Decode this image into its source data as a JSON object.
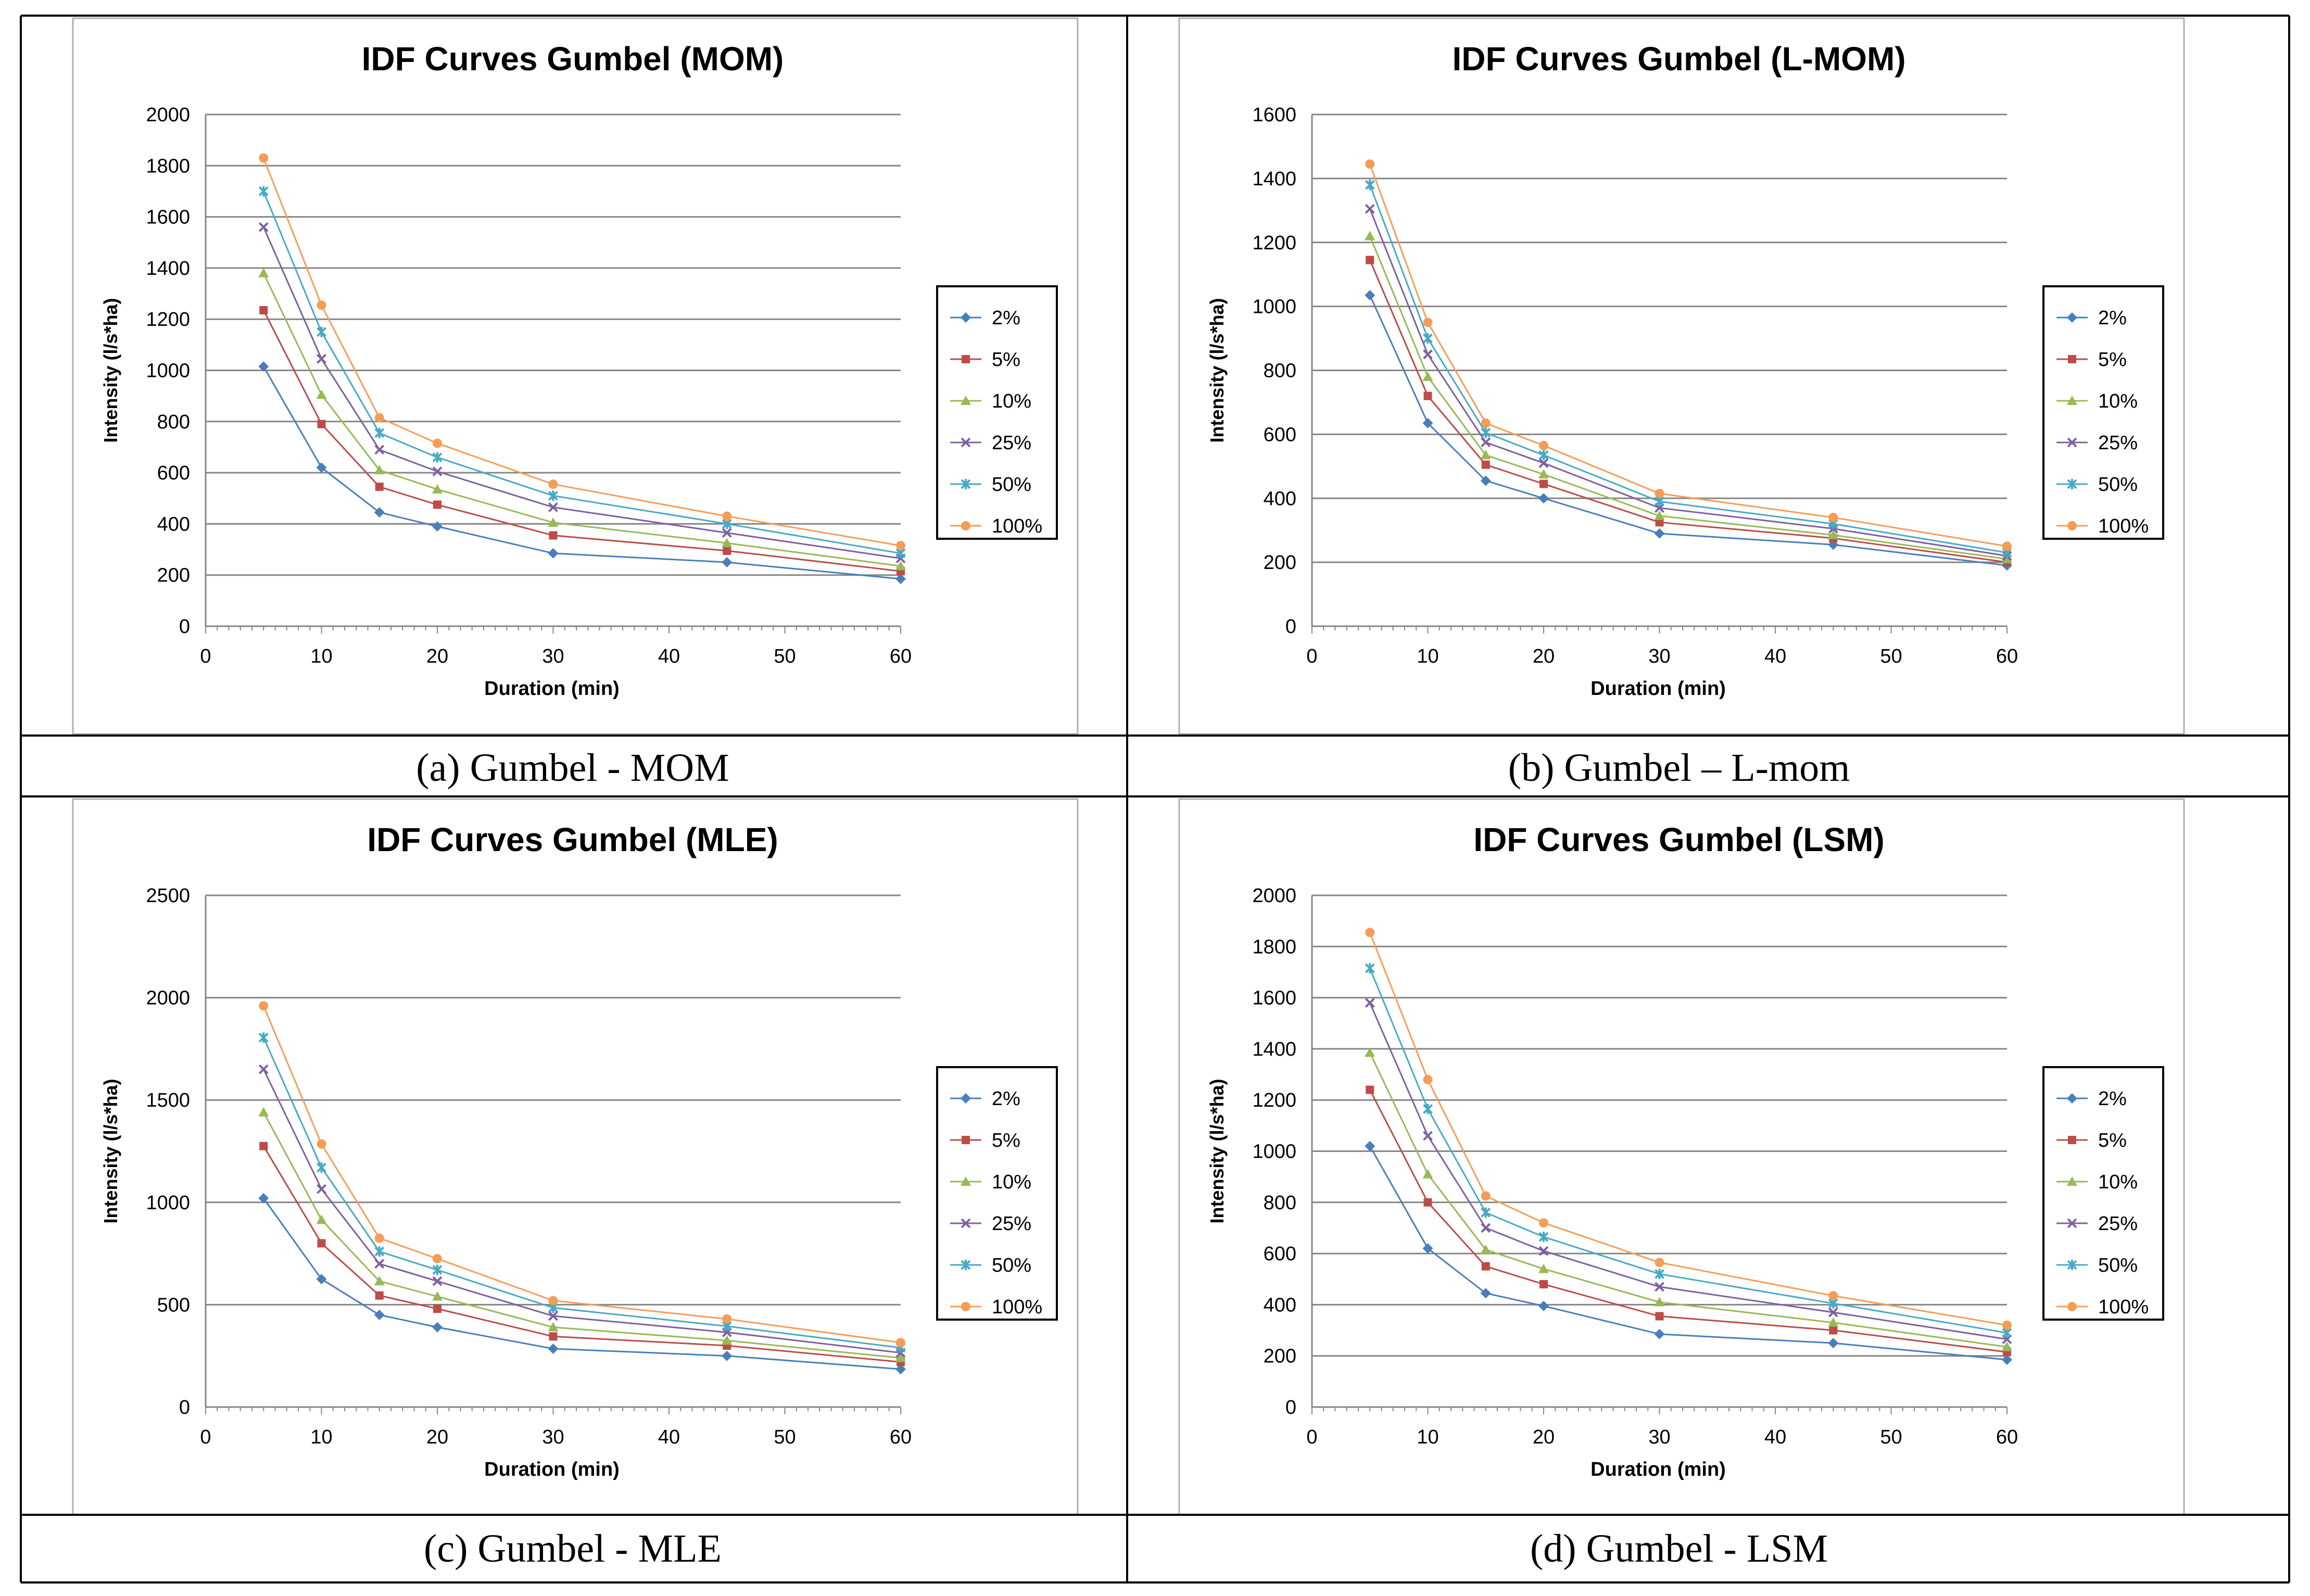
{
  "chart_data": [
    {
      "type": "line",
      "title": "IDF Curves Gumbel (MOM)",
      "caption": "(a) Gumbel - MOM",
      "xlabel": "Duration (min)",
      "ylabel": "Intensity (l/s*ha)",
      "xlim": [
        0,
        60
      ],
      "ylim": [
        0,
        2000
      ],
      "xticks": [
        0,
        10,
        20,
        30,
        40,
        50,
        60
      ],
      "yticks": [
        0,
        200,
        400,
        600,
        800,
        1000,
        1200,
        1400,
        1600,
        1800,
        2000
      ],
      "grid": "horizontal",
      "legend_position": "right",
      "x": [
        5,
        10,
        15,
        20,
        30,
        45,
        60
      ],
      "series": [
        {
          "name": "2%",
          "marker": "diamond",
          "color": "#4a7ebb",
          "values": [
            1015,
            620,
            445,
            390,
            285,
            250,
            185
          ]
        },
        {
          "name": "5%",
          "marker": "square",
          "color": "#be4b48",
          "values": [
            1235,
            790,
            545,
            475,
            355,
            295,
            215
          ]
        },
        {
          "name": "10%",
          "marker": "triangle",
          "color": "#98b954",
          "values": [
            1380,
            905,
            610,
            535,
            405,
            325,
            235
          ]
        },
        {
          "name": "25%",
          "marker": "x",
          "color": "#7d60a0",
          "values": [
            1560,
            1045,
            690,
            605,
            465,
            365,
            265
          ]
        },
        {
          "name": "50%",
          "marker": "star",
          "color": "#46aac5",
          "values": [
            1700,
            1150,
            755,
            660,
            510,
            400,
            285
          ]
        },
        {
          "name": "100%",
          "marker": "circle",
          "color": "#f59d56",
          "values": [
            1830,
            1255,
            815,
            715,
            555,
            430,
            315
          ]
        }
      ]
    },
    {
      "type": "line",
      "title": "IDF Curves Gumbel (L-MOM)",
      "caption": "(b) Gumbel – L-mom",
      "xlabel": "Duration (min)",
      "ylabel": "Intensity (l/s*ha)",
      "xlim": [
        0,
        60
      ],
      "ylim": [
        0,
        1600
      ],
      "xticks": [
        0,
        10,
        20,
        30,
        40,
        50,
        60
      ],
      "yticks": [
        0,
        200,
        400,
        600,
        800,
        1000,
        1200,
        1400,
        1600
      ],
      "grid": "horizontal",
      "legend_position": "right",
      "x": [
        5,
        10,
        15,
        20,
        30,
        45,
        60
      ],
      "series": [
        {
          "name": "2%",
          "marker": "diamond",
          "color": "#4a7ebb",
          "values": [
            1035,
            635,
            455,
            400,
            290,
            255,
            190
          ]
        },
        {
          "name": "5%",
          "marker": "square",
          "color": "#be4b48",
          "values": [
            1145,
            720,
            505,
            445,
            325,
            275,
            200
          ]
        },
        {
          "name": "10%",
          "marker": "triangle",
          "color": "#98b954",
          "values": [
            1220,
            780,
            535,
            475,
            345,
            285,
            210
          ]
        },
        {
          "name": "25%",
          "marker": "x",
          "color": "#7d60a0",
          "values": [
            1305,
            850,
            575,
            510,
            370,
            305,
            220
          ]
        },
        {
          "name": "50%",
          "marker": "star",
          "color": "#46aac5",
          "values": [
            1380,
            900,
            605,
            535,
            390,
            320,
            230
          ]
        },
        {
          "name": "100%",
          "marker": "circle",
          "color": "#f59d56",
          "values": [
            1445,
            950,
            635,
            565,
            415,
            340,
            250
          ]
        }
      ]
    },
    {
      "type": "line",
      "title": "IDF Curves Gumbel (MLE)",
      "caption": "(c) Gumbel - MLE",
      "xlabel": "Duration (min)",
      "ylabel": "Intensity (l/s*ha)",
      "xlim": [
        0,
        60
      ],
      "ylim": [
        0,
        2500
      ],
      "xticks": [
        0,
        10,
        20,
        30,
        40,
        50,
        60
      ],
      "yticks": [
        0,
        500,
        1000,
        1500,
        2000,
        2500
      ],
      "grid": "horizontal",
      "legend_position": "right",
      "x": [
        5,
        10,
        15,
        20,
        30,
        45,
        60
      ],
      "series": [
        {
          "name": "2%",
          "marker": "diamond",
          "color": "#4a7ebb",
          "values": [
            1020,
            625,
            450,
            390,
            285,
            250,
            185
          ]
        },
        {
          "name": "5%",
          "marker": "square",
          "color": "#be4b48",
          "values": [
            1275,
            800,
            545,
            480,
            345,
            300,
            220
          ]
        },
        {
          "name": "10%",
          "marker": "triangle",
          "color": "#98b954",
          "values": [
            1440,
            915,
            615,
            540,
            390,
            325,
            240
          ]
        },
        {
          "name": "25%",
          "marker": "x",
          "color": "#7d60a0",
          "values": [
            1650,
            1065,
            700,
            615,
            445,
            365,
            265
          ]
        },
        {
          "name": "50%",
          "marker": "star",
          "color": "#46aac5",
          "values": [
            1805,
            1170,
            760,
            670,
            485,
            395,
            290
          ]
        },
        {
          "name": "100%",
          "marker": "circle",
          "color": "#f59d56",
          "values": [
            1960,
            1285,
            825,
            725,
            520,
            430,
            315
          ]
        }
      ]
    },
    {
      "type": "line",
      "title": "IDF Curves Gumbel (LSM)",
      "caption": "(d) Gumbel - LSM",
      "xlabel": "Duration (min)",
      "ylabel": "Intensity (l/s*ha)",
      "xlim": [
        0,
        60
      ],
      "ylim": [
        0,
        2000
      ],
      "xticks": [
        0,
        10,
        20,
        30,
        40,
        50,
        60
      ],
      "yticks": [
        0,
        200,
        400,
        600,
        800,
        1000,
        1200,
        1400,
        1600,
        1800,
        2000
      ],
      "grid": "horizontal",
      "legend_position": "right",
      "x": [
        5,
        10,
        15,
        20,
        30,
        45,
        60
      ],
      "series": [
        {
          "name": "2%",
          "marker": "diamond",
          "color": "#4a7ebb",
          "values": [
            1020,
            620,
            445,
            395,
            285,
            250,
            185
          ]
        },
        {
          "name": "5%",
          "marker": "square",
          "color": "#be4b48",
          "values": [
            1240,
            800,
            550,
            480,
            355,
            300,
            215
          ]
        },
        {
          "name": "10%",
          "marker": "triangle",
          "color": "#98b954",
          "values": [
            1385,
            910,
            615,
            540,
            410,
            330,
            235
          ]
        },
        {
          "name": "25%",
          "marker": "x",
          "color": "#7d60a0",
          "values": [
            1580,
            1060,
            700,
            610,
            470,
            370,
            265
          ]
        },
        {
          "name": "50%",
          "marker": "star",
          "color": "#46aac5",
          "values": [
            1715,
            1165,
            760,
            665,
            520,
            405,
            290
          ]
        },
        {
          "name": "100%",
          "marker": "circle",
          "color": "#f59d56",
          "values": [
            1855,
            1280,
            825,
            720,
            565,
            435,
            320
          ]
        }
      ]
    }
  ]
}
